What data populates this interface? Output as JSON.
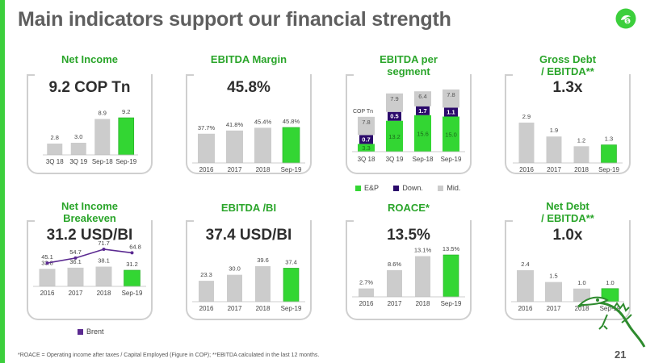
{
  "page": {
    "title": "Main indicators support our financial strength",
    "footnote": "*ROACE = Operating income after taxes / Capital Employed (Figure in COP); **EBITDA calculated in the last 12 months.",
    "page_number": "21"
  },
  "colors": {
    "accent": "#3ccf3c",
    "grey_bar": "#cccccc",
    "highlight_bar": "#33d633",
    "dark_purple": "#2b0a6b",
    "line_purple": "#5b2a91",
    "card_title": "#2aa52a"
  },
  "icons": {
    "logo": "ecopetrol-iguana-logo-icon",
    "mascot": "iguana-mascot-icon"
  },
  "cards": {
    "net_income": {
      "title": "Net Income",
      "kpi": "9.2 COP Tn"
    },
    "ebitda_margin": {
      "title": "EBITDA Margin",
      "kpi": "45.8%"
    },
    "ebitda_segment": {
      "title_line1": "EBITDA per",
      "title_line2": "segment",
      "unit_label": "COP Tn"
    },
    "gross_debt": {
      "title_line1": "Gross Debt",
      "title_line2": "/ EBITDA**",
      "kpi": "1.3x"
    },
    "ni_breakeven": {
      "title_line1": "Net Income",
      "title_line2": "Breakeven",
      "kpi": "31.2 USD/BI"
    },
    "ebitda_bi": {
      "title": "EBITDA /BI",
      "kpi": "37.4 USD/BI"
    },
    "roace": {
      "title": "ROACE*",
      "kpi": "13.5%"
    },
    "net_debt": {
      "title_line1": "Net Debt",
      "title_line2": "/ EBITDA**",
      "kpi": "1.0x"
    }
  },
  "legends": {
    "segment": [
      "E&P",
      "Down.",
      "Mid."
    ],
    "breakeven": [
      "Brent"
    ]
  },
  "chart_data": [
    {
      "id": "net_income",
      "type": "bar",
      "categories": [
        "3Q 18",
        "3Q 19",
        "Sep-18",
        "Sep-19"
      ],
      "values": [
        2.8,
        3.0,
        8.9,
        9.2
      ],
      "labels": [
        "2.8",
        "3.0",
        "8.9",
        "9.2"
      ],
      "ylim": [
        0,
        9.2
      ]
    },
    {
      "id": "ebitda_margin",
      "type": "bar",
      "categories": [
        "2016",
        "2017",
        "2018",
        "Sep-19"
      ],
      "values": [
        37.7,
        41.8,
        45.4,
        45.8
      ],
      "labels": [
        "37.7%",
        "41.8%",
        "45.4%",
        "45.8%"
      ],
      "ylim": [
        0,
        45.8
      ]
    },
    {
      "id": "ebitda_segment",
      "type": "bar",
      "categories": [
        "3Q 18",
        "3Q 19",
        "Sep-18",
        "Sep-19"
      ],
      "series": [
        {
          "name": "E&P",
          "values": [
            3.3,
            13.2,
            15.6,
            15.0
          ]
        },
        {
          "name": "Down.",
          "values": [
            0.7,
            0.5,
            1.7,
            1.1
          ]
        },
        {
          "name": "Mid.",
          "values": [
            7.8,
            7.9,
            6.4,
            7.8
          ]
        }
      ],
      "segment_labels": [
        [
          "3.3",
          "0.7",
          "7.8"
        ],
        [
          "13.2",
          "0.5",
          "7.9"
        ],
        [
          "15.6",
          "1.7",
          "6.4"
        ],
        [
          "15.0",
          "1.1",
          "7.8"
        ]
      ]
    },
    {
      "id": "gross_debt",
      "type": "bar",
      "categories": [
        "2016",
        "2017",
        "2018",
        "Sep-19"
      ],
      "values": [
        2.9,
        1.9,
        1.2,
        1.3
      ],
      "labels": [
        "2.9",
        "1.9",
        "1.2",
        "1.3"
      ],
      "ylim": [
        0,
        2.9
      ]
    },
    {
      "id": "ni_breakeven",
      "type": "bar",
      "categories": [
        "2016",
        "2017",
        "2018",
        "Sep-19"
      ],
      "values": [
        33.8,
        36.1,
        38.1,
        31.2
      ],
      "labels": [
        "33.8",
        "36.1",
        "38.1",
        "31.2"
      ],
      "ylim": [
        0,
        71.7
      ],
      "line": {
        "name": "Brent",
        "values": [
          45.1,
          54.7,
          71.7,
          64.8
        ],
        "labels": [
          "45.1",
          "54.7",
          "71.7",
          "64.8"
        ]
      }
    },
    {
      "id": "ebitda_bi",
      "type": "bar",
      "categories": [
        "2016",
        "2017",
        "2018",
        "Sep-19"
      ],
      "values": [
        23.3,
        30.0,
        39.6,
        37.4
      ],
      "labels": [
        "23.3",
        "30.0",
        "39.6",
        "37.4"
      ],
      "ylim": [
        0,
        39.6
      ]
    },
    {
      "id": "roace",
      "type": "bar",
      "categories": [
        "2016",
        "2017",
        "2018",
        "Sep-19"
      ],
      "values": [
        2.7,
        8.6,
        13.1,
        13.5
      ],
      "labels": [
        "2.7%",
        "8.6%",
        "13.1%",
        "13.5%"
      ],
      "ylim": [
        0,
        13.5
      ]
    },
    {
      "id": "net_debt",
      "type": "bar",
      "categories": [
        "2016",
        "2017",
        "2018",
        "Sep-19"
      ],
      "values": [
        2.4,
        1.5,
        1.0,
        1.0
      ],
      "labels": [
        "2.4",
        "1.5",
        "1.0",
        "1.0"
      ],
      "ylim": [
        0,
        2.4
      ]
    }
  ]
}
